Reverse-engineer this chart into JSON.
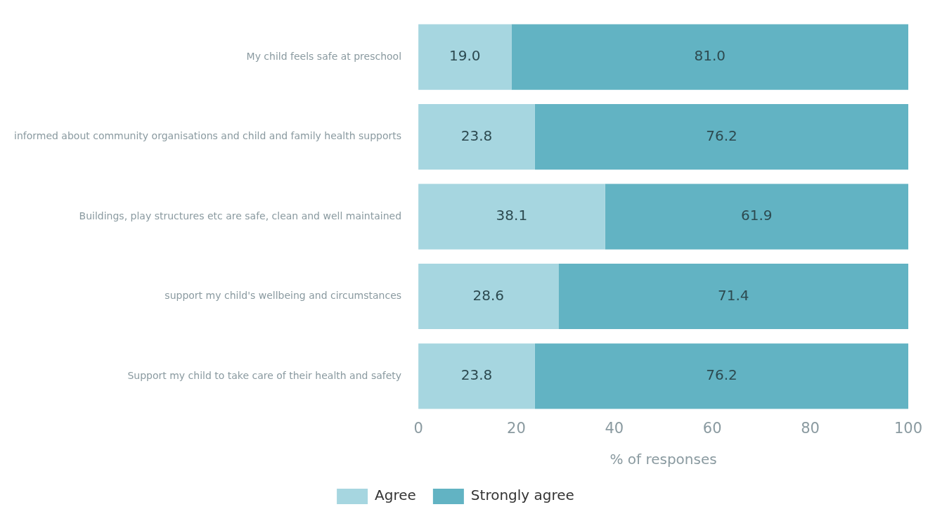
{
  "chart_data": {
    "type": "bar",
    "orientation": "horizontal",
    "stacked": true,
    "xlabel": "% of responses",
    "categories": [
      "My child feels safe at preschool",
      "informed about community organisations and child and family health supports",
      "Buildings, play structures etc are safe, clean and well maintained",
      "support my child's wellbeing and circumstances",
      "Support my child to take care of their health and safety"
    ],
    "series": [
      {
        "name": "Agree",
        "color": "#a6d6e0",
        "values": [
          19.0,
          23.8,
          38.1,
          28.6,
          23.8
        ],
        "value_labels": [
          "19.0",
          "23.8",
          "38.1",
          "28.6",
          "23.8"
        ]
      },
      {
        "name": "Strongly agree",
        "color": "#62b3c3",
        "values": [
          81.0,
          76.2,
          61.9,
          71.4,
          76.2
        ],
        "value_labels": [
          "81.0",
          "76.2",
          "61.9",
          "71.4",
          "76.2"
        ]
      }
    ],
    "xlim": [
      0,
      100
    ],
    "xticks": [
      0,
      20,
      40,
      60,
      80,
      100
    ],
    "grid": false,
    "legend": "bottom"
  }
}
